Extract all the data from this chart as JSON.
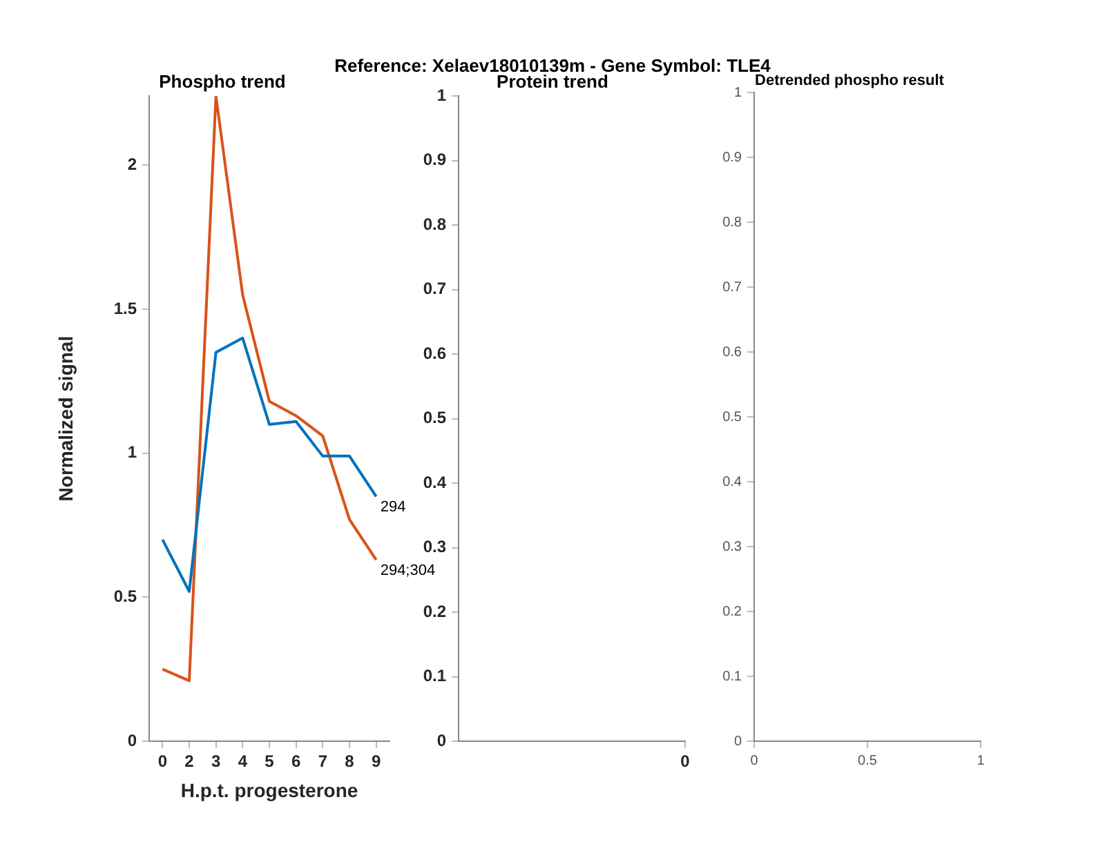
{
  "chart_data": [
    {
      "type": "line",
      "title": "Reference:  Xelaev18010139m - Gene Symbol:  TLE4",
      "subtitle": "Phospho trend",
      "xlabel": "H.p.t. progesterone",
      "ylabel": "Normalized signal",
      "categories": [
        "0",
        "2",
        "3",
        "4",
        "5",
        "6",
        "7",
        "8",
        "9"
      ],
      "ylim": [
        0,
        2.24
      ],
      "yticks": [
        0,
        0.5,
        1,
        1.5,
        2
      ],
      "grid": false,
      "line_style": "solid",
      "series": [
        {
          "name": "294",
          "color": "#0072bd",
          "values": [
            0.7,
            0.52,
            1.35,
            1.4,
            1.1,
            1.11,
            0.99,
            0.99,
            0.85
          ]
        },
        {
          "name": "294;304",
          "color": "#d95319",
          "values": [
            0.25,
            0.21,
            2.24,
            1.55,
            1.18,
            1.13,
            1.06,
            0.77,
            0.63
          ]
        }
      ]
    },
    {
      "type": "line",
      "title": "Protein trend",
      "categories": [
        "0"
      ],
      "ylim": [
        0,
        1
      ],
      "yticks": [
        0,
        0.1,
        0.2,
        0.3,
        0.4,
        0.5,
        0.6,
        0.7,
        0.8,
        0.9,
        1
      ],
      "grid": false
    },
    {
      "type": "line",
      "title": "Detrended phospho result",
      "xlim": [
        0,
        1
      ],
      "xticks": [
        0,
        0.5,
        1
      ],
      "ylim": [
        0,
        1
      ],
      "yticks": [
        0,
        0.1,
        0.2,
        0.3,
        0.4,
        0.5,
        0.6,
        0.7,
        0.8,
        0.9,
        1
      ],
      "grid": false
    }
  ]
}
